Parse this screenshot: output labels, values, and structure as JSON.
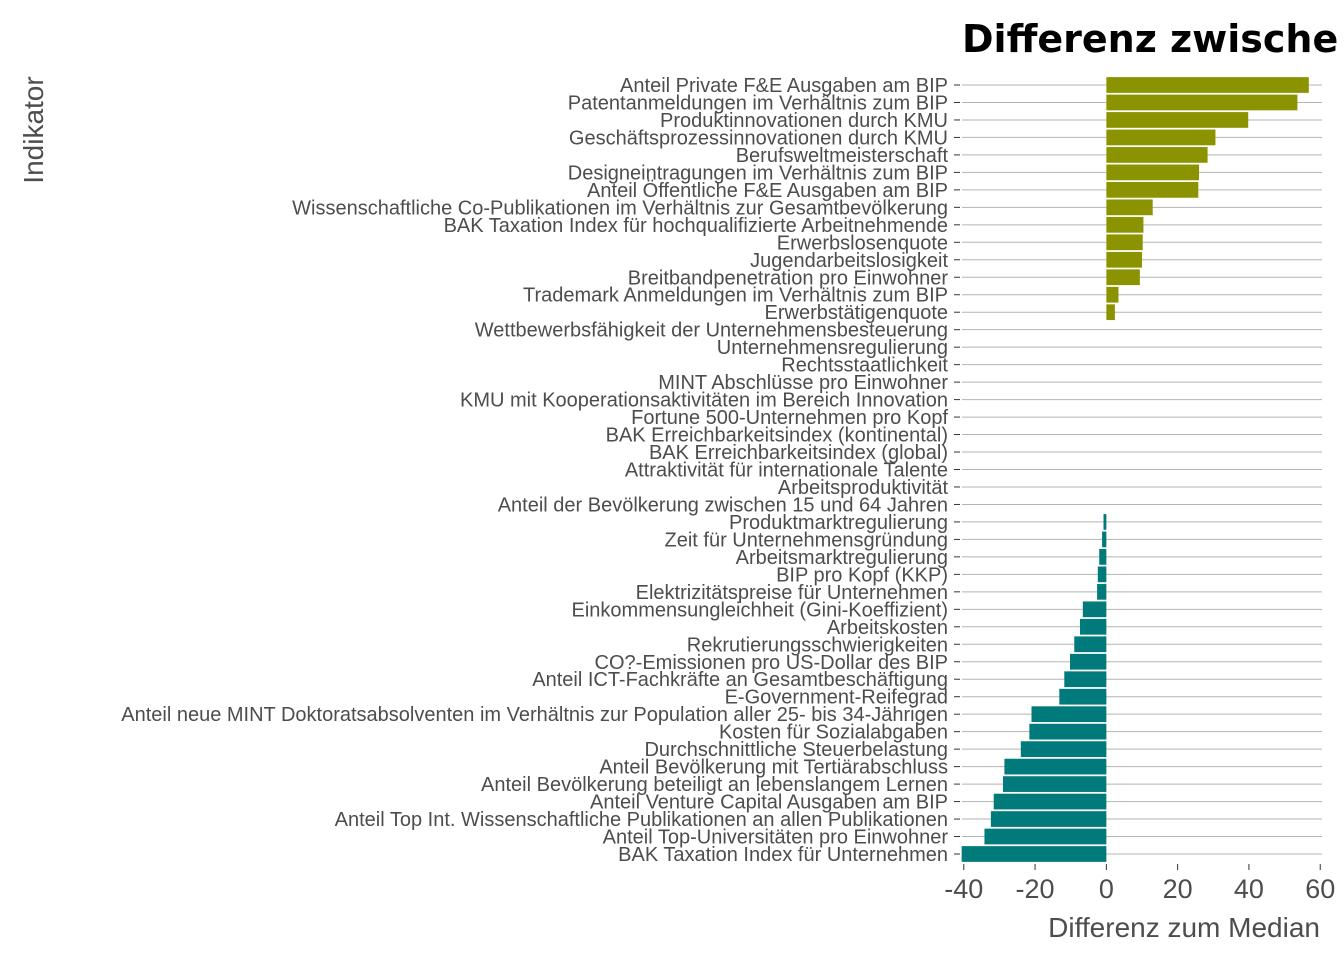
{
  "chart_data": {
    "type": "bar",
    "orientation": "horizontal",
    "title": "Differenz zwische",
    "xlabel": "Differenz zum Median",
    "ylabel": "Indikator",
    "xlim": [
      -40.5,
      60.5
    ],
    "x_ticks": [
      -40,
      -20,
      0,
      20,
      40,
      60
    ],
    "x_tick_labels": [
      "-40",
      "-20",
      "0",
      "20",
      "40",
      "60"
    ],
    "colors": {
      "positive": "#8b9300",
      "negative": "#007a7a",
      "grid": "#b3b3b3",
      "text": "#4d4d4d"
    },
    "grid": true,
    "legend": "none",
    "categories": [
      "Anteil Private F&E Ausgaben am BIP",
      "Patentanmeldungen im Verhältnis zum BIP",
      "Produktinnovationen durch KMU",
      "Geschäftsprozessinnovationen durch KMU",
      "Berufsweltmeisterschaft",
      "Designeintragungen im Verhältnis zum BIP",
      "Anteil Öffentliche F&E Ausgaben am BIP",
      "Wissenschaftliche Co-Publikationen im Verhältnis zur Gesamtbevölkerung",
      "BAK Taxation Index für hochqualifizierte Arbeitnehmende",
      "Erwerbslosenquote",
      "Jugendarbeitslosigkeit",
      "Breitbandpenetration pro Einwohner",
      "Trademark Anmeldungen im Verhältnis zum BIP",
      "Erwerbstätigenquote",
      "Wettbewerbsfähigkeit der Unternehmensbesteuerung",
      "Unternehmensregulierung",
      "Rechtsstaatlichkeit",
      "MINT Abschlüsse pro Einwohner",
      "KMU mit Kooperationsaktivitäten im Bereich Innovation",
      "Fortune 500-Unternehmen pro Kopf",
      "BAK Erreichbarkeitsindex (kontinental)",
      "BAK Erreichbarkeitsindex (global)",
      "Attraktivität für internationale Talente",
      "Arbeitsproduktivität",
      "Anteil der Bevölkerung zwischen 15 und 64 Jahren",
      "Produktmarktregulierung",
      "Zeit für Unternehmensgründung",
      "Arbeitsmarktregulierung",
      "BIP pro Kopf (KKP)",
      "Elektrizitätspreise für Unternehmen",
      "Einkommensungleichheit (Gini-Koeffizient)",
      "Arbeitskosten",
      "Rekrutierungsschwierigkeiten",
      "CO?-Emissionen pro US-Dollar des BIP",
      "Anteil ICT-Fachkräfte an Gesamtbeschäftigung",
      "E-Government-Reifegrad",
      "Anteil neue MINT Doktoratsabsolventen im Verhältnis zur Population aller 25- bis 34-Jährigen",
      "Kosten für Sozialabgaben",
      "Durchschnittliche Steuerbelastung",
      "Anteil Bevölkerung mit Tertiärabschluss",
      "Anteil Bevölkerung beteiligt an lebenslangem Lernen",
      "Anteil Venture Capital Ausgaben am BIP",
      "Anteil Top Int. Wissenschaftliche Publikationen an allen Publikationen",
      "Anteil Top-Universitäten pro Einwohner",
      "BAK Taxation Index für Unternehmen"
    ],
    "values": [
      56.8,
      53.6,
      39.8,
      30.6,
      28.4,
      26.0,
      25.8,
      13.0,
      10.4,
      10.2,
      10.0,
      9.4,
      3.4,
      2.4,
      0,
      0,
      0,
      0,
      0,
      0,
      0,
      0,
      0,
      0,
      0,
      -0.8,
      -1.2,
      -2.0,
      -2.4,
      -2.6,
      -6.6,
      -7.4,
      -9.0,
      -10.2,
      -11.8,
      -13.2,
      -21.0,
      -21.6,
      -24.0,
      -28.6,
      -29.0,
      -31.6,
      -32.4,
      -34.2,
      -40.6
    ]
  }
}
